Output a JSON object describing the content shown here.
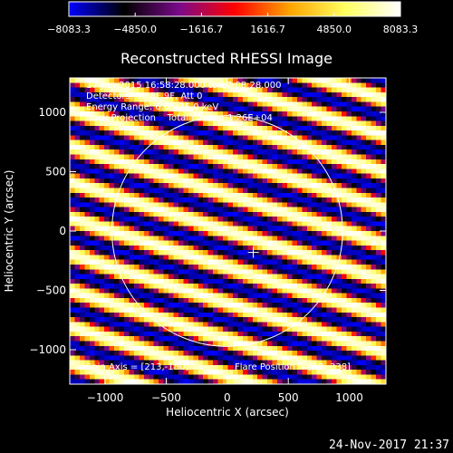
{
  "chart_data": {
    "type": "heatmap",
    "title": "Reconstructed RHESSI Image",
    "xlabel": "Heliocentric X (arcsec)",
    "ylabel": "Heliocentric Y (arcsec)",
    "xlim": [
      -1290,
      1300
    ],
    "ylim": [
      -1290,
      1290
    ],
    "xticks": [
      -1000,
      -500,
      0,
      500,
      1000
    ],
    "xtick_labels": [
      "−1000",
      "−500",
      "0",
      "500",
      "1000"
    ],
    "yticks": [
      -1000,
      -500,
      0,
      500,
      1000
    ],
    "ytick_labels": [
      "−1000",
      "−500",
      "0",
      "500",
      "1000"
    ],
    "colorbar": {
      "min": -8083.3,
      "max": 8083.3,
      "ticks": [
        -8083.3,
        -4850.0,
        -1616.7,
        1616.7,
        4850.0,
        8083.3
      ],
      "tick_labels": [
        "−8083.3",
        "−4850.0",
        "−1616.7",
        "1616.7",
        "4850.0",
        "8083.3"
      ],
      "colormap": [
        "#0000ff",
        "#000000",
        "#7a0a8a",
        "#ff0000",
        "#ffa500",
        "#ffff60",
        "#ffffff"
      ]
    },
    "solar_disk_radius": 945,
    "flare_position": [
      58,
      -338
    ],
    "spin_axis": [
      213,
      -180
    ],
    "annotations": {
      "line1": "17-Jun-2015 16:58:28.000 to 17:08:28.000",
      "line2": "Detectors: 7F 8F 9F, Att 0",
      "line3": "Energy Range: 6.0 - 25.0 keV",
      "line4": "Back Projection    Total counts: 1.26E+04",
      "spin_axis_label": "Spin Axis = [213,-180]",
      "flare_position_label": "Flare Position = [58,-338]"
    },
    "fringe_pattern": {
      "slope": -0.32,
      "period_arcsec": 290
    }
  },
  "footer": {
    "timestamp": "24-Nov-2017 21:37"
  },
  "colors": {
    "background": "#000000",
    "foreground": "#ffffff"
  }
}
